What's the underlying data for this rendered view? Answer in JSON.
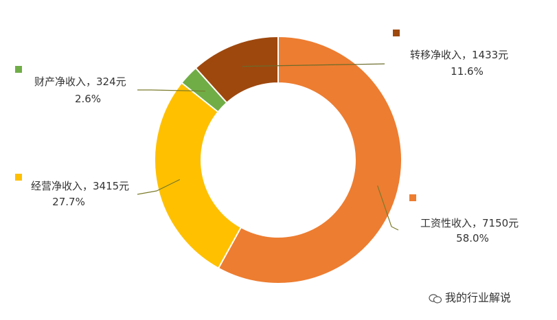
{
  "chart_data": {
    "type": "pie",
    "style": "donut",
    "categories": [
      "工资性收入",
      "经营净收入",
      "财产净收入",
      "转移净收入"
    ],
    "values": [
      7150,
      3415,
      324,
      1433
    ],
    "percents": [
      58.0,
      27.7,
      2.6,
      11.6
    ],
    "colors": [
      "#ED7D31",
      "#FFC000",
      "#70AD47",
      "#9E480E"
    ],
    "labels": [
      {
        "line1": "工资性收入，7150元",
        "line2": "58.0%"
      },
      {
        "line1": "经营净收入，3415元",
        "line2": "27.7%"
      },
      {
        "line1": "财产净收入，324元",
        "line2": "2.6%"
      },
      {
        "line1": "转移净收入，1433元",
        "line2": "11.6%"
      }
    ]
  },
  "watermark": {
    "text": "我的行业解说",
    "icon": "wechat-icon"
  }
}
